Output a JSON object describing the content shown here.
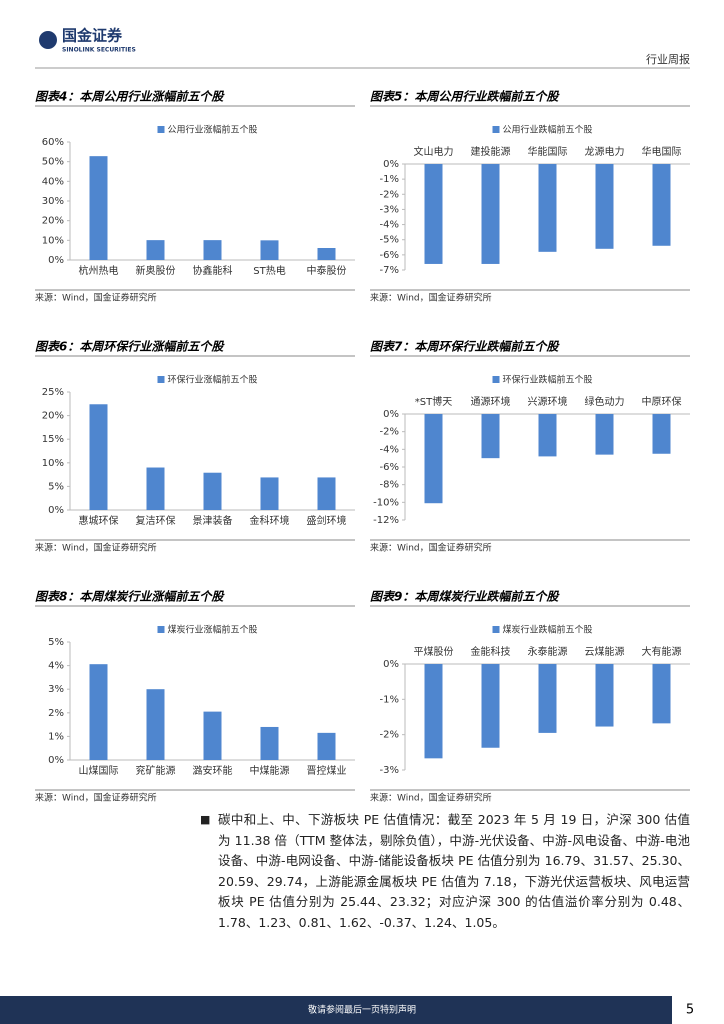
{
  "header": {
    "brand": "国金证券",
    "brand_en": "SINOLINK SECURITIES",
    "report_type": "行业周报"
  },
  "chart_data": [
    {
      "type": "bar",
      "title": "图表4：本周公用行业涨幅前五个股",
      "categories": [
        "杭州热电",
        "新奥股份",
        "协鑫能科",
        "ST热电",
        "中泰股份"
      ],
      "series": [
        {
          "name": "公用行业涨幅前五个股",
          "color": "#4f86cf",
          "values": [
            52.8,
            10.1,
            10.1,
            10.0,
            6.1
          ]
        }
      ],
      "ylim": [
        0,
        60
      ],
      "yticks": [
        {
          "value": 0,
          "label": "0%"
        },
        {
          "value": 10,
          "label": "10%"
        },
        {
          "value": 20,
          "label": "20%"
        },
        {
          "value": 30,
          "label": "30%"
        },
        {
          "value": 40,
          "label": "40%"
        },
        {
          "value": 50,
          "label": "50%"
        },
        {
          "value": 60,
          "label": "60%"
        }
      ],
      "source": "来源：Wind，国金证券研究所"
    },
    {
      "type": "bar",
      "title": "图表5：本周公用行业跌幅前五个股",
      "categories": [
        "文山电力",
        "建投能源",
        "华能国际",
        "龙源电力",
        "华电国际"
      ],
      "series": [
        {
          "name": "公用行业跌幅前五个股",
          "color": "#4f86cf",
          "values": [
            -6.6,
            -6.6,
            -5.8,
            -5.6,
            -5.4
          ]
        }
      ],
      "ylim": [
        -7,
        0
      ],
      "yticks": [
        {
          "value": 0,
          "label": "0%"
        },
        {
          "value": -1,
          "label": "-1%"
        },
        {
          "value": -2,
          "label": "-2%"
        },
        {
          "value": -3,
          "label": "-3%"
        },
        {
          "value": -4,
          "label": "-4%"
        },
        {
          "value": -5,
          "label": "-5%"
        },
        {
          "value": -6,
          "label": "-6%"
        },
        {
          "value": -7,
          "label": "-7%"
        }
      ],
      "source": "来源：Wind，国金证券研究所"
    },
    {
      "type": "bar",
      "title": "图表6：本周环保行业涨幅前五个股",
      "categories": [
        "惠城环保",
        "复洁环保",
        "景津装备",
        "金科环境",
        "盛剑环境"
      ],
      "series": [
        {
          "name": "环保行业涨幅前五个股",
          "color": "#4f86cf",
          "values": [
            22.4,
            9.0,
            7.9,
            6.9,
            6.9
          ]
        }
      ],
      "ylim": [
        0,
        25
      ],
      "yticks": [
        {
          "value": 0,
          "label": "0%"
        },
        {
          "value": 5,
          "label": "5%"
        },
        {
          "value": 10,
          "label": "10%"
        },
        {
          "value": 15,
          "label": "15%"
        },
        {
          "value": 20,
          "label": "20%"
        },
        {
          "value": 25,
          "label": "25%"
        }
      ],
      "source": "来源：Wind，国金证券研究所"
    },
    {
      "type": "bar",
      "title": "图表7：本周环保行业跌幅前五个股",
      "categories": [
        "*ST博天",
        "通源环境",
        "兴源环境",
        "绿色动力",
        "中原环保"
      ],
      "series": [
        {
          "name": "环保行业跌幅前五个股",
          "color": "#4f86cf",
          "values": [
            -10.1,
            -5.0,
            -4.8,
            -4.6,
            -4.5
          ]
        }
      ],
      "ylim": [
        -12,
        0
      ],
      "yticks": [
        {
          "value": 0,
          "label": "0%"
        },
        {
          "value": -2,
          "label": "-2%"
        },
        {
          "value": -4,
          "label": "-4%"
        },
        {
          "value": -6,
          "label": "-6%"
        },
        {
          "value": -8,
          "label": "-8%"
        },
        {
          "value": -10,
          "label": "-10%"
        },
        {
          "value": -12,
          "label": "-12%"
        }
      ],
      "source": "来源：Wind，国金证券研究所"
    },
    {
      "type": "bar",
      "title": "图表8：本周煤炭行业涨幅前五个股",
      "categories": [
        "山煤国际",
        "兖矿能源",
        "潞安环能",
        "中煤能源",
        "晋控煤业"
      ],
      "series": [
        {
          "name": "煤炭行业涨幅前五个股",
          "color": "#4f86cf",
          "values": [
            4.06,
            3.0,
            2.05,
            1.4,
            1.15
          ]
        }
      ],
      "ylim": [
        0,
        5
      ],
      "yticks": [
        {
          "value": 0,
          "label": "0%"
        },
        {
          "value": 1,
          "label": "1%"
        },
        {
          "value": 2,
          "label": "2%"
        },
        {
          "value": 3,
          "label": "3%"
        },
        {
          "value": 4,
          "label": "4%"
        },
        {
          "value": 5,
          "label": "5%"
        }
      ],
      "source": "来源：Wind，国金证券研究所"
    },
    {
      "type": "bar",
      "title": "图表9：本周煤炭行业跌幅前五个股",
      "categories": [
        "平煤股份",
        "金能科技",
        "永泰能源",
        "云煤能源",
        "大有能源"
      ],
      "series": [
        {
          "name": "煤炭行业跌幅前五个股",
          "color": "#4f86cf",
          "values": [
            -2.67,
            -2.37,
            -1.95,
            -1.77,
            -1.68
          ]
        }
      ],
      "ylim": [
        -3,
        0
      ],
      "yticks": [
        {
          "value": 0,
          "label": "0%"
        },
        {
          "value": -1,
          "label": "-1%"
        },
        {
          "value": -2,
          "label": "-2%"
        },
        {
          "value": -3,
          "label": "-3%"
        }
      ],
      "source": "来源：Wind，国金证券研究所"
    }
  ],
  "body": {
    "bullet": "■",
    "paragraph": "碳中和上、中、下游板块 PE 估值情况：截至 2023 年 5 月 19 日，沪深 300 估值为 11.38 倍（TTM 整体法，剔除负值），中游-光伏设备、中游-风电设备、中游-电池设备、中游-电网设备、中游-储能设备板块 PE 估值分别为 16.79、31.57、25.30、20.59、29.74，上游能源金属板块 PE 估值为 7.18，下游光伏运营板块、风电运营板块 PE 估值分别为 25.44、23.32；对应沪深 300 的估值溢价率分别为 0.48、1.78、1.23、0.81、1.62、-0.37、1.24、1.05。"
  },
  "footer": {
    "disclaimer": "敬请参阅最后一页特别声明",
    "page": "5"
  }
}
